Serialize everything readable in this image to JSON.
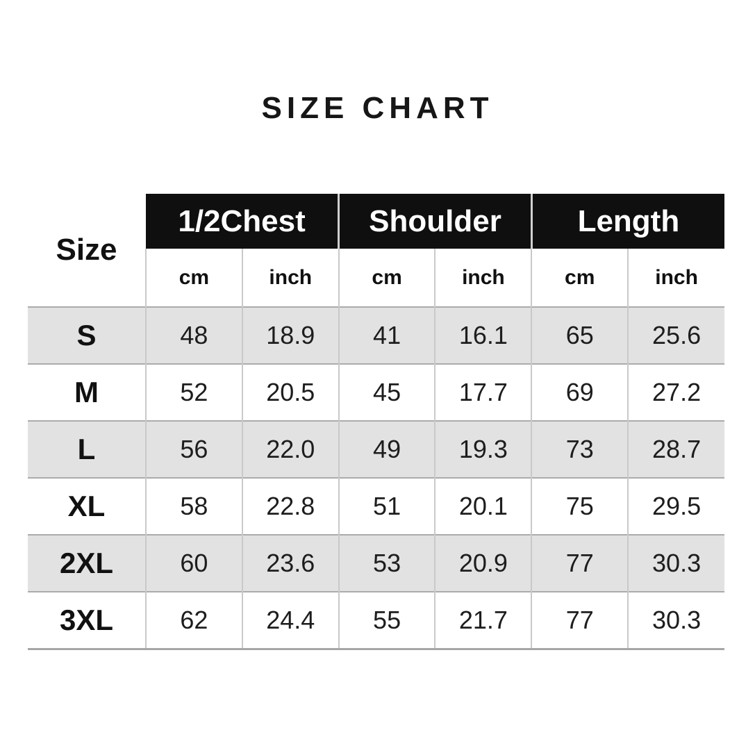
{
  "title": "SIZE CHART",
  "table": {
    "corner_label": "Size",
    "groups": [
      {
        "label": "1/2Chest"
      },
      {
        "label": "Shoulder"
      },
      {
        "label": "Length"
      }
    ],
    "unit_headers": [
      "cm",
      "inch",
      "cm",
      "inch",
      "cm",
      "inch"
    ],
    "rows": [
      {
        "size": "S",
        "values": [
          "48",
          "18.9",
          "41",
          "16.1",
          "65",
          "25.6"
        ]
      },
      {
        "size": "M",
        "values": [
          "52",
          "20.5",
          "45",
          "17.7",
          "69",
          "27.2"
        ]
      },
      {
        "size": "L",
        "values": [
          "56",
          "22.0",
          "49",
          "19.3",
          "73",
          "28.7"
        ]
      },
      {
        "size": "XL",
        "values": [
          "58",
          "22.8",
          "51",
          "20.1",
          "75",
          "29.5"
        ]
      },
      {
        "size": "2XL",
        "values": [
          "60",
          "23.6",
          "53",
          "20.9",
          "77",
          "30.3"
        ]
      },
      {
        "size": "3XL",
        "values": [
          "62",
          "24.4",
          "55",
          "21.7",
          "77",
          "30.3"
        ]
      }
    ],
    "colors": {
      "header_bg": "#0f0f0f",
      "header_text": "#ffffff",
      "row_alt_bg": "#e2e2e2",
      "grid_vertical": "#c9c9c9",
      "grid_horizontal": "#ababab"
    }
  },
  "chart_data": {
    "type": "table",
    "title": "SIZE CHART",
    "row_header": "Size",
    "column_groups": [
      "1/2Chest",
      "Shoulder",
      "Length"
    ],
    "columns": [
      "Size",
      "1/2Chest cm",
      "1/2Chest inch",
      "Shoulder cm",
      "Shoulder inch",
      "Length cm",
      "Length inch"
    ],
    "rows": [
      [
        "S",
        48,
        18.9,
        41,
        16.1,
        65,
        25.6
      ],
      [
        "M",
        52,
        20.5,
        45,
        17.7,
        69,
        27.2
      ],
      [
        "L",
        56,
        22.0,
        49,
        19.3,
        73,
        28.7
      ],
      [
        "XL",
        58,
        22.8,
        51,
        20.1,
        75,
        29.5
      ],
      [
        "2XL",
        60,
        23.6,
        53,
        20.9,
        77,
        30.3
      ],
      [
        "3XL",
        62,
        24.4,
        55,
        21.7,
        77,
        30.3
      ]
    ]
  }
}
